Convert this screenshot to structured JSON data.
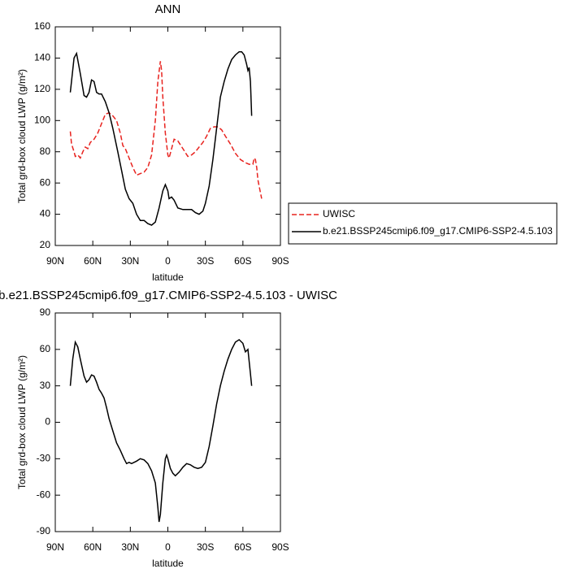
{
  "chart_data": [
    {
      "type": "line",
      "title": "ANN",
      "xlabel": "latitude",
      "ylabel": "Total grd-box cloud LWP (g/m²)",
      "xlim": [
        90,
        -90
      ],
      "xticks": [
        {
          "value": 90,
          "label": "90N"
        },
        {
          "value": 60,
          "label": "60N"
        },
        {
          "value": 30,
          "label": "30N"
        },
        0,
        {
          "value": -30,
          "label": "30S"
        },
        {
          "value": -60,
          "label": "60S"
        },
        {
          "value": -90,
          "label": "90S"
        }
      ],
      "ylim": [
        20,
        160
      ],
      "yticks": [
        20,
        40,
        60,
        80,
        100,
        120,
        140,
        160
      ],
      "legend": "right",
      "series": [
        {
          "name": "UWISC",
          "color": "#e8231f",
          "dashed": true,
          "x": [
            78,
            77,
            75,
            74,
            72,
            70,
            68,
            66,
            64,
            62,
            59,
            56,
            53,
            50,
            47,
            44,
            41,
            38,
            36,
            34,
            31,
            28,
            25,
            22,
            19,
            16,
            13,
            10,
            8,
            6,
            5,
            4,
            2,
            0,
            -1,
            -3,
            -5,
            -8,
            -12,
            -16,
            -19,
            -22,
            -25,
            -28,
            -31,
            -34,
            -37,
            -40,
            -43,
            -46,
            -50,
            -54,
            -58,
            -62,
            -65,
            -68,
            -69,
            -70,
            -71,
            -72,
            -73,
            -75
          ],
          "values": [
            93,
            85,
            80,
            77,
            78,
            76,
            80,
            83,
            82,
            86,
            88,
            92,
            98,
            104,
            105,
            103,
            100,
            92,
            84,
            82,
            76,
            70,
            65,
            66,
            67,
            70,
            78,
            100,
            125,
            138,
            132,
            115,
            92,
            78,
            76,
            82,
            88,
            87,
            82,
            77,
            78,
            80,
            83,
            86,
            90,
            95,
            96,
            96,
            94,
            90,
            85,
            79,
            75,
            73,
            72,
            72,
            76,
            75,
            70,
            62,
            58,
            50
          ]
        },
        {
          "name": "b.e21.BSSP245cmip6.f09_g17.CMIP6-SSP2-4.5.103",
          "color": "#000000",
          "dashed": false,
          "x": [
            78,
            75,
            73,
            70,
            67,
            65,
            63,
            61,
            59,
            57,
            55,
            53,
            50,
            47,
            44,
            40,
            37,
            34,
            31,
            28,
            25,
            22,
            19,
            16,
            13,
            10,
            7,
            4,
            2,
            0,
            -1,
            -3,
            -5,
            -8,
            -12,
            -16,
            -19,
            -22,
            -25,
            -28,
            -30,
            -33,
            -36,
            -39,
            -42,
            -45,
            -48,
            -51,
            -54,
            -57,
            -59,
            -61,
            -63,
            -64,
            -65,
            -66,
            -67
          ],
          "values": [
            118,
            140,
            143,
            130,
            116,
            115,
            118,
            126,
            125,
            118,
            117,
            117,
            112,
            105,
            95,
            80,
            68,
            56,
            50,
            47,
            40,
            36,
            36,
            34,
            33,
            35,
            44,
            55,
            59,
            55,
            50,
            51,
            49,
            44,
            43,
            43,
            43,
            41,
            40,
            42,
            47,
            58,
            75,
            95,
            115,
            125,
            133,
            139,
            142,
            144,
            144,
            142,
            136,
            132,
            134,
            125,
            103
          ]
        }
      ]
    },
    {
      "type": "line",
      "title": "b.e21.BSSP245cmip6.f09_g17.CMIP6-SSP2-4.5.103 - UWISC",
      "xlabel": "latitude",
      "ylabel": "Total grd-box cloud LWP (g/m²)",
      "xlim": [
        90,
        -90
      ],
      "xticks": [
        {
          "value": 90,
          "label": "90N"
        },
        {
          "value": 60,
          "label": "60N"
        },
        {
          "value": 30,
          "label": "30N"
        },
        0,
        {
          "value": -30,
          "label": "30S"
        },
        {
          "value": -60,
          "label": "60S"
        },
        {
          "value": -90,
          "label": "90S"
        }
      ],
      "ylim": [
        -90,
        90
      ],
      "yticks": [
        -90,
        -60,
        -30,
        0,
        30,
        60,
        90
      ],
      "series": [
        {
          "color": "#000000",
          "dashed": false,
          "x": [
            78,
            76,
            74,
            72,
            70,
            67,
            65,
            63,
            61,
            59,
            57,
            55,
            53,
            51,
            49,
            47,
            44,
            41,
            38,
            35,
            33,
            31,
            29,
            27,
            25,
            22,
            19,
            16,
            13,
            10,
            8,
            7,
            6,
            4,
            2,
            1,
            0,
            -2,
            -4,
            -6,
            -9,
            -12,
            -15,
            -18,
            -21,
            -24,
            -27,
            -30,
            -33,
            -36,
            -39,
            -42,
            -45,
            -48,
            -51,
            -54,
            -57,
            -60,
            -62,
            -64,
            -66,
            -67
          ],
          "values": [
            30,
            52,
            66,
            62,
            52,
            38,
            33,
            35,
            39,
            38,
            33,
            27,
            24,
            20,
            12,
            3,
            -7,
            -17,
            -23,
            -30,
            -34,
            -33,
            -34,
            -33,
            -32,
            -30,
            -31,
            -34,
            -40,
            -50,
            -70,
            -82,
            -76,
            -50,
            -30,
            -27,
            -30,
            -38,
            -42,
            -44,
            -41,
            -37,
            -34,
            -35,
            -37,
            -38,
            -37,
            -33,
            -20,
            -3,
            15,
            30,
            42,
            52,
            60,
            66,
            68,
            65,
            58,
            60,
            40,
            30
          ]
        }
      ]
    }
  ]
}
